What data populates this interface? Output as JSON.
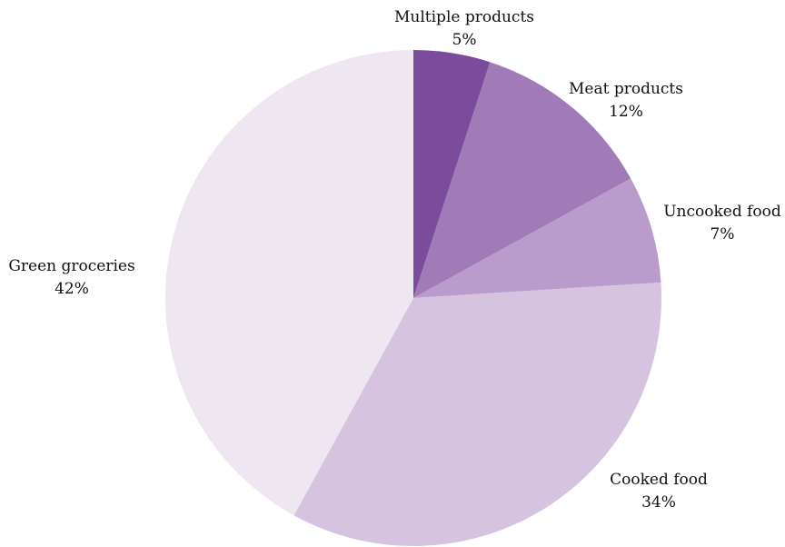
{
  "chart_data": {
    "type": "pie",
    "title": "",
    "start_angle_deg": 0,
    "direction": "clockwise",
    "slices": [
      {
        "label": "Multiple products",
        "value_label": "5%",
        "value": 5,
        "color": "#7b4c9c"
      },
      {
        "label": "Meat products",
        "value_label": "12%",
        "value": 12,
        "color": "#a07bb8"
      },
      {
        "label": "Uncooked food",
        "value_label": "7%",
        "value": 7,
        "color": "#b99ccb"
      },
      {
        "label": "Cooked food",
        "value_label": "34%",
        "value": 34,
        "color": "#d6c3e0"
      },
      {
        "label": "Green groceries",
        "value_label": "42%",
        "value": 42,
        "color": "#eee7f2"
      }
    ]
  }
}
